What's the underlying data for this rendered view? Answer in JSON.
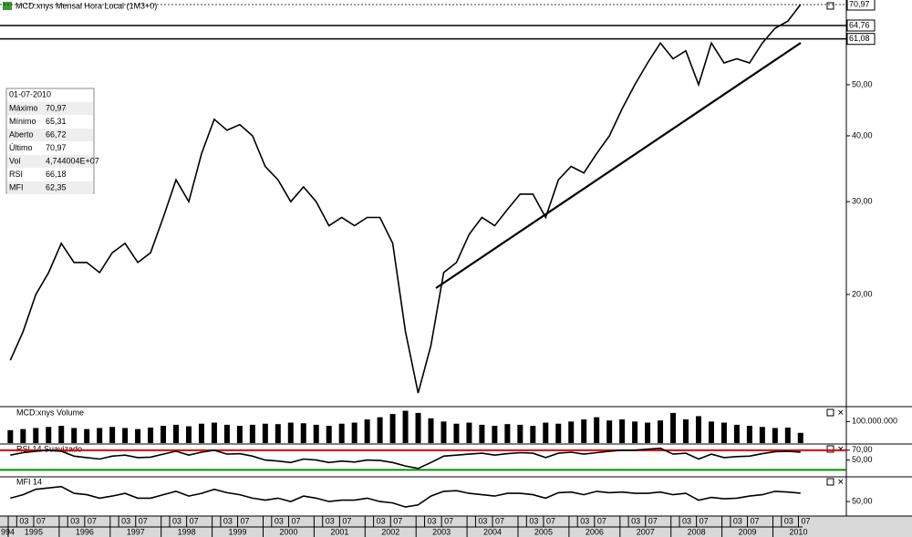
{
  "header": {
    "title": "MCD:xnys Mensal Hora Local (1M3+0)"
  },
  "info_box": {
    "date": "01-07-2010",
    "rows": [
      [
        "Máximo",
        "70,97"
      ],
      [
        "Mínimo",
        "65,31"
      ],
      [
        "Aberto",
        "66,72"
      ],
      [
        "Último",
        "70,97"
      ],
      [
        "Vol",
        "4,744004E+07"
      ],
      [
        "RSI",
        "66,18"
      ],
      [
        "MFI",
        "62,35"
      ]
    ]
  },
  "time_axis": {
    "years": [
      "994",
      "1995",
      "1996",
      "1997",
      "1998",
      "1999",
      "2000",
      "2001",
      "2002",
      "2003",
      "2004",
      "2005",
      "2006",
      "2007",
      "2008",
      "2009",
      "2010"
    ],
    "months": [
      "03",
      "07"
    ]
  },
  "dates": [
    "1995-01",
    "1995-04",
    "1995-07",
    "1995-10",
    "1996-01",
    "1996-04",
    "1996-07",
    "1996-10",
    "1997-01",
    "1997-04",
    "1997-07",
    "1997-10",
    "1998-01",
    "1998-04",
    "1998-07",
    "1998-10",
    "1999-01",
    "1999-04",
    "1999-07",
    "1999-10",
    "2000-01",
    "2000-04",
    "2000-07",
    "2000-10",
    "2001-01",
    "2001-04",
    "2001-07",
    "2001-10",
    "2002-01",
    "2002-04",
    "2002-07",
    "2002-10",
    "2003-01",
    "2003-04",
    "2003-07",
    "2003-10",
    "2004-01",
    "2004-04",
    "2004-07",
    "2004-10",
    "2005-01",
    "2005-04",
    "2005-07",
    "2005-10",
    "2006-01",
    "2006-04",
    "2006-07",
    "2006-10",
    "2007-01",
    "2007-04",
    "2007-07",
    "2007-10",
    "2008-01",
    "2008-04",
    "2008-07",
    "2008-10",
    "2009-01",
    "2009-04",
    "2009-07",
    "2009-10",
    "2010-01",
    "2010-04",
    "2010-07"
  ],
  "price": {
    "ylim": [
      12.3,
      72.4
    ],
    "log": true,
    "color": "#000000",
    "yticks": [
      {
        "value": 50,
        "label": "50,00"
      },
      {
        "value": 40,
        "label": "40,00"
      },
      {
        "value": 30,
        "label": "30,00"
      },
      {
        "value": 20,
        "label": "20,00"
      }
    ],
    "levels": [
      {
        "value": 70.97,
        "label": "70,97"
      },
      {
        "value": 64.76,
        "label": "64,76"
      },
      {
        "value": 61.08,
        "label": "61,08"
      }
    ],
    "values": [
      15,
      17,
      20,
      22,
      25,
      23,
      23,
      22,
      24,
      25,
      23,
      24,
      28,
      33,
      30,
      37,
      43,
      41,
      42,
      40,
      35,
      33,
      30,
      32,
      30,
      27,
      28,
      27,
      28,
      28,
      25,
      17,
      13,
      16,
      22,
      23,
      26,
      28,
      27,
      29,
      31,
      31,
      28,
      33,
      35,
      34,
      37,
      40,
      45,
      50,
      55,
      60,
      56,
      58,
      50,
      60,
      55,
      56,
      55,
      60,
      64,
      66,
      70.97
    ]
  },
  "volume": {
    "title": "MCD:xnys Volume",
    "ylim": [
      0,
      165000000
    ],
    "color": "#000000",
    "yticks": [
      {
        "value": 100000000,
        "label": "100.000.000"
      }
    ],
    "values": [
      60000000,
      65000000,
      70000000,
      75000000,
      80000000,
      70000000,
      65000000,
      70000000,
      75000000,
      70000000,
      65000000,
      72000000,
      80000000,
      85000000,
      78000000,
      90000000,
      95000000,
      85000000,
      80000000,
      85000000,
      90000000,
      88000000,
      95000000,
      92000000,
      85000000,
      80000000,
      90000000,
      95000000,
      110000000,
      120000000,
      135000000,
      150000000,
      140000000,
      115000000,
      100000000,
      90000000,
      95000000,
      85000000,
      80000000,
      88000000,
      85000000,
      80000000,
      95000000,
      90000000,
      100000000,
      110000000,
      120000000,
      105000000,
      110000000,
      100000000,
      95000000,
      105000000,
      140000000,
      110000000,
      125000000,
      100000000,
      95000000,
      85000000,
      80000000,
      75000000,
      70000000,
      72000000,
      47440040
    ]
  },
  "rsi": {
    "title": "RSI 14 Suavizado",
    "ylim": [
      17.7,
      80.8
    ],
    "color": "#000000",
    "yticks": [
      {
        "value": 70,
        "label": "70,00"
      },
      {
        "value": 50,
        "label": "50,00"
      }
    ],
    "levels": [
      {
        "value": 70,
        "color": "#e00000"
      },
      {
        "value": 30,
        "color": "#009000"
      }
    ],
    "values": [
      60,
      65,
      68,
      70,
      68,
      58,
      55,
      52,
      58,
      60,
      55,
      56,
      62,
      68,
      60,
      66,
      70,
      62,
      63,
      58,
      50,
      48,
      45,
      52,
      50,
      45,
      48,
      46,
      50,
      49,
      45,
      38,
      33,
      45,
      58,
      60,
      62,
      64,
      60,
      63,
      65,
      64,
      55,
      64,
      66,
      62,
      65,
      68,
      70,
      70,
      72,
      74,
      62,
      64,
      52,
      62,
      55,
      57,
      58,
      63,
      67,
      68,
      66.18
    ]
  },
  "mfi": {
    "title": "MFI 14",
    "ylim": [
      30,
      85
    ],
    "color": "#000000",
    "yticks": [
      {
        "value": 50,
        "label": "50,00"
      }
    ],
    "values": [
      55,
      60,
      68,
      70,
      72,
      62,
      60,
      55,
      58,
      62,
      55,
      55,
      60,
      65,
      58,
      62,
      68,
      63,
      60,
      55,
      52,
      55,
      50,
      58,
      55,
      50,
      52,
      52,
      55,
      50,
      48,
      42,
      45,
      58,
      65,
      66,
      62,
      60,
      58,
      62,
      62,
      60,
      55,
      63,
      64,
      60,
      65,
      63,
      64,
      62,
      62,
      64,
      60,
      62,
      52,
      56,
      54,
      55,
      58,
      60,
      65,
      64,
      62.35
    ]
  }
}
